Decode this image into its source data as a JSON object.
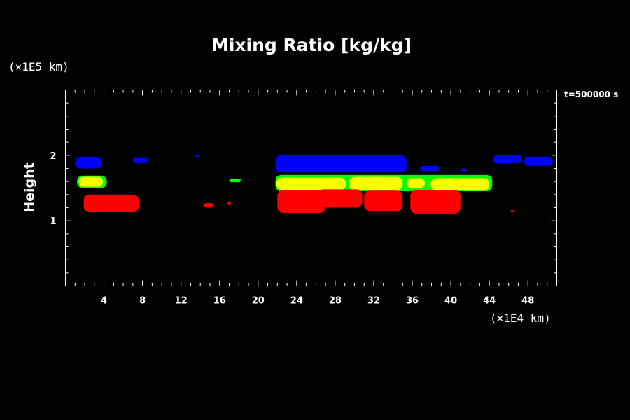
{
  "chart_data": {
    "type": "heatmap",
    "title": "Mixing Ratio [kg/kg]",
    "xlabel": "",
    "ylabel": "Height",
    "x_scale_label": "(×1E4 km)",
    "y_scale_label": "(×1E5 km)",
    "time_label": "t=500000 s",
    "xlim": [
      0,
      51
    ],
    "ylim": [
      0,
      3
    ],
    "x_ticks": [
      4,
      8,
      12,
      16,
      20,
      24,
      28,
      32,
      36,
      40,
      44,
      48
    ],
    "y_ticks": [
      1,
      2
    ],
    "background": "#000000",
    "legend": "none",
    "grid": false,
    "colors": {
      "red": "#ff0000",
      "yellow": "#ffff00",
      "green": "#00ff00",
      "blue": "#0000ff"
    },
    "regions": [
      {
        "color": "blue",
        "x": [
          1.0,
          3.8
        ],
        "y": [
          1.8,
          1.98
        ]
      },
      {
        "color": "blue",
        "x": [
          7.0,
          8.6
        ],
        "y": [
          1.88,
          1.97
        ]
      },
      {
        "color": "blue",
        "x": [
          13.4,
          13.9
        ],
        "y": [
          1.98,
          2.01
        ]
      },
      {
        "color": "blue",
        "x": [
          21.8,
          35.4
        ],
        "y": [
          1.74,
          2.0
        ]
      },
      {
        "color": "blue",
        "x": [
          36.8,
          38.8
        ],
        "y": [
          1.76,
          1.84
        ]
      },
      {
        "color": "blue",
        "x": [
          41.0,
          41.6
        ],
        "y": [
          1.76,
          1.8
        ]
      },
      {
        "color": "blue",
        "x": [
          44.4,
          47.4
        ],
        "y": [
          1.88,
          2.0
        ]
      },
      {
        "color": "blue",
        "x": [
          47.6,
          50.6
        ],
        "y": [
          1.84,
          1.98
        ]
      },
      {
        "color": "green",
        "x": [
          1.2,
          4.3
        ],
        "y": [
          1.5,
          1.69
        ]
      },
      {
        "color": "yellow",
        "x": [
          1.4,
          3.9
        ],
        "y": [
          1.52,
          1.67
        ]
      },
      {
        "color": "green",
        "x": [
          17.0,
          18.2
        ],
        "y": [
          1.59,
          1.64
        ]
      },
      {
        "color": "green",
        "x": [
          21.8,
          44.3
        ],
        "y": [
          1.45,
          1.7
        ]
      },
      {
        "color": "yellow",
        "x": [
          21.9,
          29.1
        ],
        "y": [
          1.47,
          1.66
        ]
      },
      {
        "color": "yellow",
        "x": [
          29.4,
          35.0
        ],
        "y": [
          1.47,
          1.67
        ]
      },
      {
        "color": "yellow",
        "x": [
          35.4,
          37.3
        ],
        "y": [
          1.5,
          1.65
        ]
      },
      {
        "color": "yellow",
        "x": [
          37.9,
          44.0
        ],
        "y": [
          1.46,
          1.65
        ]
      },
      {
        "color": "red",
        "x": [
          1.9,
          7.6
        ],
        "y": [
          1.13,
          1.4
        ]
      },
      {
        "color": "red",
        "x": [
          14.4,
          15.3
        ],
        "y": [
          1.2,
          1.27
        ]
      },
      {
        "color": "red",
        "x": [
          16.8,
          17.2
        ],
        "y": [
          1.24,
          1.28
        ]
      },
      {
        "color": "red",
        "x": [
          22.0,
          27.0
        ],
        "y": [
          1.12,
          1.47
        ]
      },
      {
        "color": "red",
        "x": [
          26.2,
          30.8
        ],
        "y": [
          1.2,
          1.48
        ]
      },
      {
        "color": "red",
        "x": [
          31.0,
          35.0
        ],
        "y": [
          1.15,
          1.46
        ]
      },
      {
        "color": "red",
        "x": [
          35.8,
          41.0
        ],
        "y": [
          1.11,
          1.47
        ]
      },
      {
        "color": "red",
        "x": [
          46.2,
          46.6
        ],
        "y": [
          1.13,
          1.16
        ]
      }
    ]
  }
}
